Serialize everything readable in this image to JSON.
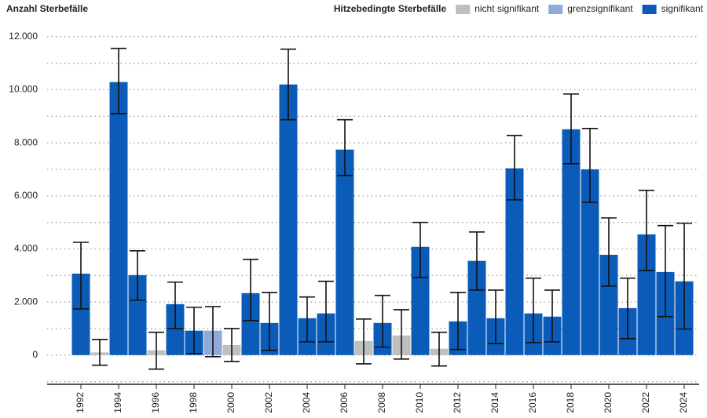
{
  "chart_data": {
    "type": "bar",
    "y_title": "Anzahl Sterbefälle",
    "legend_title": "Hitzebedingte Sterbefälle",
    "legend": "top-right",
    "categories": [
      "1992",
      null,
      "1994",
      null,
      "1996",
      null,
      "1998",
      null,
      "2000",
      null,
      "2002",
      null,
      "2004",
      null,
      "2006",
      null,
      "2008",
      null,
      "2010",
      null,
      "2012",
      null,
      "2014",
      null,
      "2016",
      null,
      "2018",
      null,
      "2020",
      null,
      "2022",
      null,
      "2024"
    ],
    "series": [
      {
        "name": "nicht signifikant",
        "color": "#bfbfbf",
        "values": [
          null,
          100,
          null,
          null,
          180,
          null,
          null,
          null,
          380,
          null,
          null,
          null,
          null,
          null,
          null,
          530,
          null,
          740,
          null,
          240,
          null,
          null,
          null,
          null,
          null,
          null,
          null,
          null,
          null,
          null,
          null,
          null,
          null
        ],
        "lower": [
          null,
          -380,
          null,
          null,
          -530,
          null,
          null,
          null,
          -240,
          null,
          null,
          null,
          null,
          null,
          null,
          -330,
          null,
          -150,
          null,
          -410,
          null,
          null,
          null,
          null,
          null,
          null,
          null,
          null,
          null,
          null,
          null,
          null,
          null
        ],
        "upper": [
          null,
          590,
          null,
          null,
          860,
          null,
          null,
          null,
          1000,
          null,
          null,
          null,
          null,
          null,
          null,
          1360,
          null,
          1710,
          null,
          860,
          null,
          null,
          null,
          null,
          null,
          null,
          null,
          null,
          null,
          null,
          null,
          null,
          null
        ]
      },
      {
        "name": "grenzsignifikant",
        "color": "#8fa9db",
        "values": [
          null,
          null,
          null,
          null,
          null,
          null,
          null,
          920,
          null,
          null,
          null,
          null,
          null,
          null,
          null,
          null,
          null,
          null,
          null,
          null,
          null,
          null,
          null,
          null,
          null,
          null,
          null,
          null,
          null,
          null,
          null,
          null,
          null
        ],
        "lower": [
          null,
          null,
          null,
          null,
          null,
          null,
          null,
          -60,
          null,
          null,
          null,
          null,
          null,
          null,
          null,
          null,
          null,
          null,
          null,
          null,
          null,
          null,
          null,
          null,
          null,
          null,
          null,
          null,
          null,
          null,
          null,
          null,
          null
        ],
        "upper": [
          null,
          null,
          null,
          null,
          null,
          null,
          null,
          1830,
          null,
          null,
          null,
          null,
          null,
          null,
          null,
          null,
          null,
          null,
          null,
          null,
          null,
          null,
          null,
          null,
          null,
          null,
          null,
          null,
          null,
          null,
          null,
          null,
          null
        ]
      },
      {
        "name": "signifikant",
        "color": "#0b5cb8",
        "values": [
          3070,
          null,
          10290,
          3015,
          null,
          1920,
          920,
          null,
          null,
          2335,
          1210,
          10200,
          1390,
          1570,
          7745,
          null,
          1210,
          null,
          4080,
          null,
          1270,
          3550,
          1390,
          7040,
          1570,
          1450,
          8510,
          7000,
          3780,
          1770,
          4550,
          3130,
          2780
        ],
        "lower": [
          1740,
          null,
          9100,
          2070,
          null,
          1000,
          60,
          null,
          null,
          1300,
          180,
          8870,
          500,
          500,
          6770,
          null,
          300,
          null,
          2930,
          null,
          210,
          2450,
          440,
          5850,
          470,
          500,
          7210,
          5760,
          2600,
          620,
          3190,
          1450,
          980
        ],
        "upper": [
          4250,
          null,
          11560,
          3930,
          null,
          2750,
          1800,
          null,
          null,
          3610,
          2360,
          11530,
          2190,
          2780,
          8870,
          null,
          2250,
          null,
          5000,
          null,
          2360,
          4640,
          2450,
          8280,
          2900,
          2450,
          9840,
          8540,
          5170,
          2900,
          6210,
          4880,
          4970
        ]
      }
    ],
    "ylim": [
      -1100,
      12200
    ],
    "yticks": [
      {
        "value": 0,
        "label": "0"
      },
      {
        "value": 2000,
        "label": "2.000"
      },
      {
        "value": 4000,
        "label": "4.000"
      },
      {
        "value": 6000,
        "label": "6.000"
      },
      {
        "value": 8000,
        "label": "8.000"
      },
      {
        "value": 10000,
        "label": "10.000"
      },
      {
        "value": 12000,
        "label": "12.000"
      }
    ],
    "minor_grid": [
      -1000,
      1000,
      3000,
      5000,
      7000,
      9000,
      11000
    ],
    "grid": true
  }
}
